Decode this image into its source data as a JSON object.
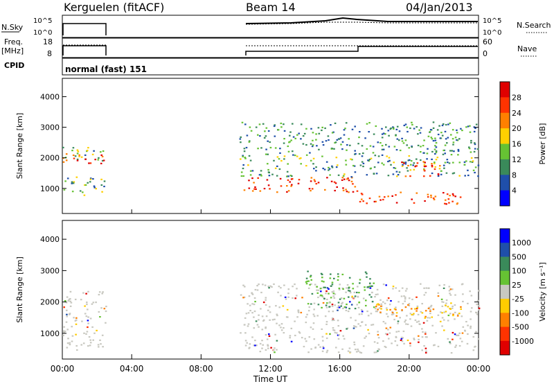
{
  "header": {
    "station": "Kerguelen (fitACF)",
    "beam": "Beam 14",
    "date": "04/Jan/2013"
  },
  "strips": {
    "nsky_label": "N.Sky",
    "nsky_ticks": [
      "10^5",
      "10^0"
    ],
    "nsearch_label": "N.Search",
    "nsearch_ticks": [
      "10^5",
      "10^0"
    ],
    "freq_label": "Freq.",
    "freq_unit": "[MHz]",
    "freq_ticks": [
      "18",
      "8"
    ],
    "nave_label": "Nave",
    "nave_ticks": [
      "60",
      "0"
    ],
    "cpid_label": "CPID",
    "cpid_value": "normal (fast) 151"
  },
  "chart_data": [
    {
      "type": "heatmap",
      "panel": "power",
      "ylabel": "Slant Range [km]",
      "yticks": [
        1000,
        2000,
        3000,
        4000
      ],
      "ylim": [
        180,
        4600
      ],
      "xlim": [
        0,
        24
      ],
      "colorbar_label": "Power [dB]",
      "colorbar_ticks": [
        "28",
        "24",
        "20",
        "16",
        "12",
        "8",
        "4"
      ],
      "colorbar_colors": [
        "#0000ff",
        "#1f4faa",
        "#3a8a5a",
        "#66c233",
        "#ffd000",
        "#ff8000",
        "#ff3300",
        "#e00000"
      ],
      "scatter_regions": [
        {
          "t": [
            0,
            2.5
          ],
          "r": [
            1900,
            2400
          ],
          "level": "mid"
        },
        {
          "t": [
            0,
            2.5
          ],
          "r": [
            1800,
            2150
          ],
          "level": "high"
        },
        {
          "t": [
            0,
            2.5
          ],
          "r": [
            800,
            1400
          ],
          "level": "mid"
        },
        {
          "t": [
            10.2,
            17
          ],
          "r": [
            900,
            1400
          ],
          "level": "high"
        },
        {
          "t": [
            10.2,
            24
          ],
          "r": [
            1400,
            2100
          ],
          "level": "mid"
        },
        {
          "t": [
            17,
            23
          ],
          "r": [
            500,
            900
          ],
          "level": "high"
        },
        {
          "t": [
            19.5,
            22
          ],
          "r": [
            1400,
            1900
          ],
          "level": "high"
        },
        {
          "t": [
            10.2,
            24
          ],
          "r": [
            2100,
            3200
          ],
          "level": "low"
        }
      ]
    },
    {
      "type": "heatmap",
      "panel": "velocity",
      "ylabel": "Slant Range [km]",
      "yticks": [
        1000,
        2000,
        3000,
        4000
      ],
      "ylim": [
        180,
        4600
      ],
      "xlim": [
        0,
        24
      ],
      "xticks": [
        "00:00",
        "04:00",
        "08:00",
        "12:00",
        "16:00",
        "20:00",
        "00:00"
      ],
      "xlabel": "Time UT",
      "colorbar_label": "Velocity [m s⁻¹]",
      "colorbar_ticks": [
        "1000",
        "500",
        "100",
        "25",
        "-25",
        "-100",
        "-500",
        "-1000"
      ],
      "colorbar_colors": [
        "#e00000",
        "#ff3300",
        "#ff8000",
        "#ffcc00",
        "#c8c8c0",
        "#66c233",
        "#3a8a5a",
        "#1f4faa",
        "#0000ff"
      ],
      "scatter_regions": [
        {
          "t": [
            0,
            2.5
          ],
          "r": [
            400,
            2400
          ],
          "level": "gray"
        },
        {
          "t": [
            10.2,
            24
          ],
          "r": [
            400,
            2600
          ],
          "level": "gray"
        },
        {
          "t": [
            14,
            18
          ],
          "r": [
            1800,
            3000
          ],
          "level": "green"
        },
        {
          "t": [
            18,
            23
          ],
          "r": [
            1500,
            2000
          ],
          "level": "orange"
        }
      ]
    }
  ]
}
